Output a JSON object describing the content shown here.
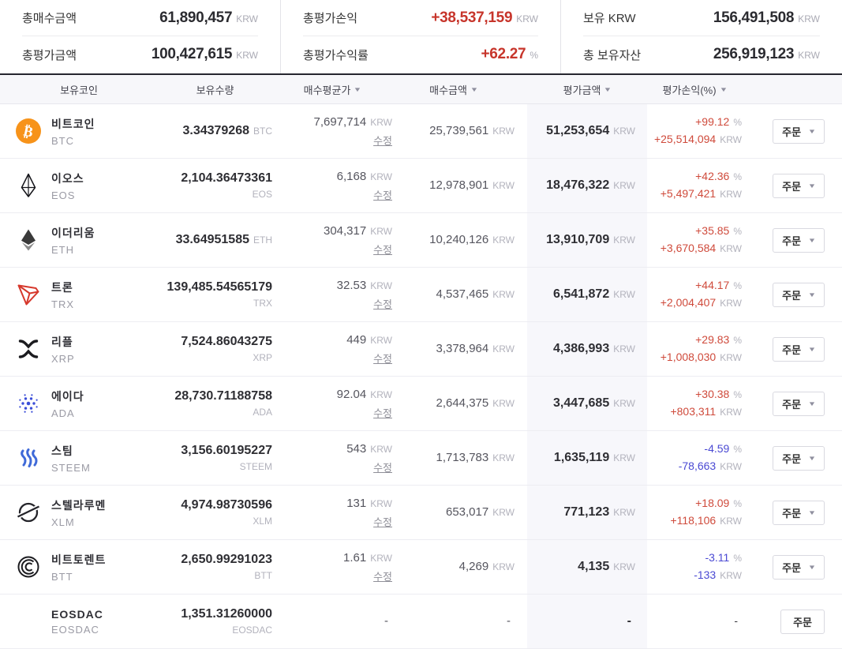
{
  "colors": {
    "positive": "#cf4a3b",
    "negative": "#4a49d3",
    "summary_profit": "#c7352b",
    "eval_highlight": "#f7f7fb"
  },
  "summary": {
    "items": [
      {
        "label": "총매수금액",
        "value": "61,890,457",
        "unit": "KRW",
        "accent": false
      },
      {
        "label": "총평가금액",
        "value": "100,427,615",
        "unit": "KRW",
        "accent": false
      },
      {
        "label": "총평가손익",
        "value": "+38,537,159",
        "unit": "KRW",
        "accent": true
      },
      {
        "label": "총평가수익률",
        "value": "+62.27",
        "unit": "%",
        "accent": true
      },
      {
        "label": "보유 KRW",
        "value": "156,491,508",
        "unit": "KRW",
        "accent": false
      },
      {
        "label": "총 보유자산",
        "value": "256,919,123",
        "unit": "KRW",
        "accent": false
      }
    ]
  },
  "table": {
    "headers": [
      {
        "label": "보유코인",
        "sortable": false
      },
      {
        "label": "보유수량",
        "sortable": false
      },
      {
        "label": "매수평균가",
        "sortable": true
      },
      {
        "label": "매수금액",
        "sortable": true
      },
      {
        "label": "평가금액",
        "sortable": true
      },
      {
        "label": "평가손익(%)",
        "sortable": true
      }
    ],
    "edit_label": "수정",
    "order_label": "주문",
    "rows": [
      {
        "name": "비트코인",
        "symbol": "BTC",
        "icon": "btc-icon",
        "quantity": "3.34379268",
        "quantity_unit": "BTC",
        "unit_inline": true,
        "avg_price": "7,697,714",
        "avg_unit": "KRW",
        "show_edit": true,
        "buy_amount": "25,739,561",
        "buy_unit": "KRW",
        "eval_amount": "51,253,654",
        "eval_unit": "KRW",
        "pl_pct": "+99.12",
        "pl_pct_unit": "%",
        "pl_krw": "+25,514,094",
        "pl_krw_unit": "KRW",
        "direction": "up",
        "has_dropdown": true
      },
      {
        "name": "이오스",
        "symbol": "EOS",
        "icon": "eos-icon",
        "quantity": "2,104.36473361",
        "quantity_unit": "EOS",
        "unit_inline": false,
        "avg_price": "6,168",
        "avg_unit": "KRW",
        "show_edit": true,
        "buy_amount": "12,978,901",
        "buy_unit": "KRW",
        "eval_amount": "18,476,322",
        "eval_unit": "KRW",
        "pl_pct": "+42.36",
        "pl_pct_unit": "%",
        "pl_krw": "+5,497,421",
        "pl_krw_unit": "KRW",
        "direction": "up",
        "has_dropdown": true
      },
      {
        "name": "이더리움",
        "symbol": "ETH",
        "icon": "eth-icon",
        "quantity": "33.64951585",
        "quantity_unit": "ETH",
        "unit_inline": true,
        "avg_price": "304,317",
        "avg_unit": "KRW",
        "show_edit": true,
        "buy_amount": "10,240,126",
        "buy_unit": "KRW",
        "eval_amount": "13,910,709",
        "eval_unit": "KRW",
        "pl_pct": "+35.85",
        "pl_pct_unit": "%",
        "pl_krw": "+3,670,584",
        "pl_krw_unit": "KRW",
        "direction": "up",
        "has_dropdown": true
      },
      {
        "name": "트론",
        "symbol": "TRX",
        "icon": "trx-icon",
        "quantity": "139,485.54565179",
        "quantity_unit": "TRX",
        "unit_inline": false,
        "avg_price": "32.53",
        "avg_unit": "KRW",
        "show_edit": true,
        "buy_amount": "4,537,465",
        "buy_unit": "KRW",
        "eval_amount": "6,541,872",
        "eval_unit": "KRW",
        "pl_pct": "+44.17",
        "pl_pct_unit": "%",
        "pl_krw": "+2,004,407",
        "pl_krw_unit": "KRW",
        "direction": "up",
        "has_dropdown": true
      },
      {
        "name": "리플",
        "symbol": "XRP",
        "icon": "xrp-icon",
        "quantity": "7,524.86043275",
        "quantity_unit": "XRP",
        "unit_inline": false,
        "avg_price": "449",
        "avg_unit": "KRW",
        "show_edit": true,
        "buy_amount": "3,378,964",
        "buy_unit": "KRW",
        "eval_amount": "4,386,993",
        "eval_unit": "KRW",
        "pl_pct": "+29.83",
        "pl_pct_unit": "%",
        "pl_krw": "+1,008,030",
        "pl_krw_unit": "KRW",
        "direction": "up",
        "has_dropdown": true
      },
      {
        "name": "에이다",
        "symbol": "ADA",
        "icon": "ada-icon",
        "quantity": "28,730.71188758",
        "quantity_unit": "ADA",
        "unit_inline": false,
        "avg_price": "92.04",
        "avg_unit": "KRW",
        "show_edit": true,
        "buy_amount": "2,644,375",
        "buy_unit": "KRW",
        "eval_amount": "3,447,685",
        "eval_unit": "KRW",
        "pl_pct": "+30.38",
        "pl_pct_unit": "%",
        "pl_krw": "+803,311",
        "pl_krw_unit": "KRW",
        "direction": "up",
        "has_dropdown": true
      },
      {
        "name": "스팀",
        "symbol": "STEEM",
        "icon": "steem-icon",
        "quantity": "3,156.60195227",
        "quantity_unit": "STEEM",
        "unit_inline": false,
        "avg_price": "543",
        "avg_unit": "KRW",
        "show_edit": true,
        "buy_amount": "1,713,783",
        "buy_unit": "KRW",
        "eval_amount": "1,635,119",
        "eval_unit": "KRW",
        "pl_pct": "-4.59",
        "pl_pct_unit": "%",
        "pl_krw": "-78,663",
        "pl_krw_unit": "KRW",
        "direction": "down",
        "has_dropdown": true
      },
      {
        "name": "스텔라루멘",
        "symbol": "XLM",
        "icon": "xlm-icon",
        "quantity": "4,974.98730596",
        "quantity_unit": "XLM",
        "unit_inline": false,
        "avg_price": "131",
        "avg_unit": "KRW",
        "show_edit": true,
        "buy_amount": "653,017",
        "buy_unit": "KRW",
        "eval_amount": "771,123",
        "eval_unit": "KRW",
        "pl_pct": "+18.09",
        "pl_pct_unit": "%",
        "pl_krw": "+118,106",
        "pl_krw_unit": "KRW",
        "direction": "up",
        "has_dropdown": true
      },
      {
        "name": "비트토렌트",
        "symbol": "BTT",
        "icon": "btt-icon",
        "quantity": "2,650.99291023",
        "quantity_unit": "BTT",
        "unit_inline": false,
        "avg_price": "1.61",
        "avg_unit": "KRW",
        "show_edit": true,
        "buy_amount": "4,269",
        "buy_unit": "KRW",
        "eval_amount": "4,135",
        "eval_unit": "KRW",
        "pl_pct": "-3.11",
        "pl_pct_unit": "%",
        "pl_krw": "-133",
        "pl_krw_unit": "KRW",
        "direction": "down",
        "has_dropdown": true
      },
      {
        "name": "EOSDAC",
        "symbol": "EOSDAC",
        "icon": "",
        "quantity": "1,351.31260000",
        "quantity_unit": "EOSDAC",
        "unit_inline": false,
        "avg_price": "-",
        "avg_unit": "",
        "show_edit": false,
        "buy_amount": "-",
        "buy_unit": "",
        "eval_amount": "-",
        "eval_unit": "",
        "pl_pct": "-",
        "pl_pct_unit": "",
        "pl_krw": "",
        "pl_krw_unit": "",
        "direction": "flat",
        "has_dropdown": false
      }
    ]
  }
}
